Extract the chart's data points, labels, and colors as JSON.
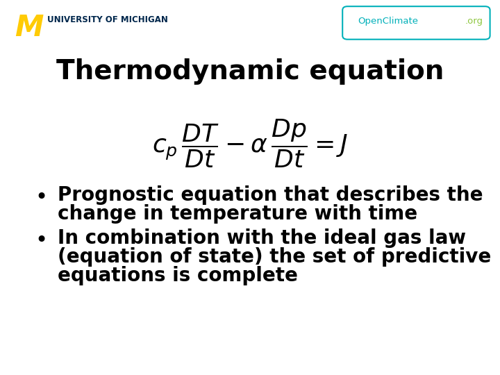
{
  "title": "Thermodynamic equation",
  "bullet1_line1": "Prognostic equation that describes the",
  "bullet1_line2": "change in temperature with time",
  "bullet2_line1": "In combination with the ideal gas law",
  "bullet2_line2": "(equation of state) the set of predictive",
  "bullet2_line3": "equations is complete",
  "bg_color": "#ffffff",
  "text_color": "#000000",
  "title_fontsize": 28,
  "equation_fontsize": 26,
  "bullet_fontsize": 20,
  "um_yellow": "#FFCB05",
  "um_blue": "#00274C",
  "openclimate_cyan": "#00B0B9",
  "openclimate_green": "#8DC63F"
}
